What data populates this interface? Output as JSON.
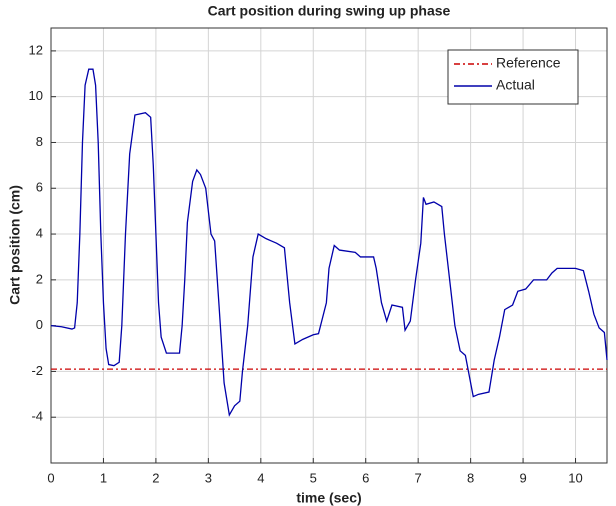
{
  "chart_data": {
    "type": "line",
    "title": "Cart position during swing up phase",
    "xlabel": "time (sec)",
    "ylabel": "Cart position (cm)",
    "xlim": [
      0,
      10.6
    ],
    "ylim": [
      -6,
      13
    ],
    "xticks": [
      0,
      1,
      2,
      3,
      4,
      5,
      6,
      7,
      8,
      9,
      10
    ],
    "yticks": [
      -4,
      -2,
      0,
      2,
      4,
      6,
      8,
      10,
      12
    ],
    "grid": true,
    "legend": "northeast",
    "series": [
      {
        "name": "Reference",
        "color": "#cc0000",
        "dashed": true,
        "x": [
          0,
          10.6
        ],
        "values": [
          -1.9,
          -1.9
        ]
      },
      {
        "name": "Actual",
        "color": "#0000aa",
        "x": [
          0,
          0.2,
          0.4,
          0.45,
          0.5,
          0.55,
          0.6,
          0.65,
          0.72,
          0.8,
          0.85,
          0.9,
          0.95,
          1.0,
          1.05,
          1.1,
          1.2,
          1.3,
          1.35,
          1.42,
          1.5,
          1.6,
          1.8,
          1.9,
          1.95,
          2.0,
          2.05,
          2.1,
          2.2,
          2.45,
          2.5,
          2.55,
          2.6,
          2.7,
          2.78,
          2.85,
          2.95,
          3.05,
          3.12,
          3.2,
          3.3,
          3.4,
          3.5,
          3.6,
          3.65,
          3.75,
          3.85,
          3.95,
          4.1,
          4.2,
          4.3,
          4.45,
          4.55,
          4.65,
          4.8,
          5.0,
          5.1,
          5.25,
          5.3,
          5.4,
          5.5,
          5.8,
          5.9,
          6.15,
          6.2,
          6.3,
          6.4,
          6.5,
          6.7,
          6.75,
          6.85,
          6.95,
          7.05,
          7.1,
          7.15,
          7.3,
          7.45,
          7.5,
          7.6,
          7.7,
          7.8,
          7.9,
          8.0,
          8.05,
          8.15,
          8.35,
          8.45,
          8.55,
          8.65,
          8.8,
          8.9,
          9.05,
          9.2,
          9.45,
          9.55,
          9.65,
          10.0,
          10.15,
          10.25,
          10.35,
          10.45,
          10.55,
          10.6
        ],
        "values": [
          0,
          -0.05,
          -0.15,
          -0.1,
          1,
          4,
          8,
          10.5,
          11.2,
          11.2,
          10.5,
          8,
          4,
          1,
          -1,
          -1.7,
          -1.75,
          -1.6,
          0,
          4,
          7.5,
          9.2,
          9.3,
          9.1,
          7,
          4,
          1,
          -0.5,
          -1.2,
          -1.2,
          0,
          2,
          4.5,
          6.3,
          6.8,
          6.6,
          6,
          4,
          3.7,
          1,
          -2.5,
          -3.9,
          -3.5,
          -3.3,
          -2,
          0,
          3,
          4,
          3.8,
          3.7,
          3.6,
          3.4,
          1,
          -0.8,
          -0.6,
          -0.4,
          -0.35,
          1,
          2.5,
          3.5,
          3.3,
          3.2,
          3.0,
          3.0,
          2.5,
          1,
          0.2,
          0.9,
          0.8,
          -0.2,
          0.2,
          2,
          3.6,
          5.6,
          5.3,
          5.4,
          5.2,
          4,
          2,
          0,
          -1.1,
          -1.3,
          -2.5,
          -3.1,
          -3.0,
          -2.9,
          -1.5,
          -0.5,
          0.7,
          0.9,
          1.5,
          1.6,
          2.0,
          2.0,
          2.3,
          2.5,
          2.5,
          2.4,
          1.5,
          0.5,
          -0.1,
          -0.3,
          -1.5
        ]
      }
    ]
  }
}
